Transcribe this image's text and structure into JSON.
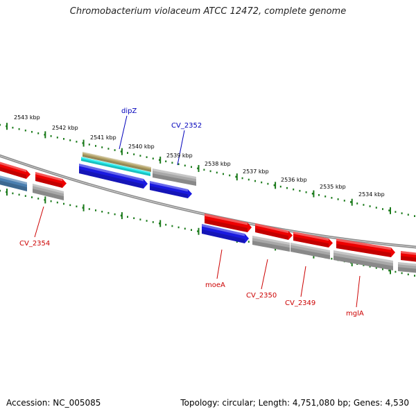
{
  "title": "Chromobacterium violaceum ATCC 12472, complete genome",
  "footer": {
    "accession": "Accession: NC_005085",
    "summary": "Topology: circular; Length: 4,751,080 bp; Genes: 4,530"
  },
  "colors": {
    "forward_gene": "#ee0000",
    "reverse_gene": "#1a1ae0",
    "other_gene": "#a8a8a8",
    "teal_gene": "#4a7fb0",
    "olive_feature": "#b5a56a",
    "cyan_feature": "#22e8e8",
    "backbone": "#8a8a8a",
    "scale_dots": "#1a7a1a",
    "label_forward": "#cc0000",
    "label_reverse": "#0000bb"
  },
  "scale": {
    "unit": "kbp",
    "labels": [
      "2543 kbp",
      "2542 kbp",
      "2541 kbp",
      "2540 kbp",
      "2539 kbp",
      "2538 kbp",
      "2537 kbp",
      "2536 kbp",
      "2535 kbp",
      "2534 kbp"
    ]
  },
  "gene_labels": {
    "upper": [
      {
        "text": "dipZ",
        "strand": "reverse"
      },
      {
        "text": "CV_2352",
        "strand": "reverse"
      }
    ],
    "lower": [
      {
        "text": "CV_2354",
        "strand": "forward"
      },
      {
        "text": "moeA",
        "strand": "forward"
      },
      {
        "text": "CV_2350",
        "strand": "forward"
      },
      {
        "text": "CV_2349",
        "strand": "forward"
      },
      {
        "text": "mglA",
        "strand": "forward"
      }
    ]
  }
}
